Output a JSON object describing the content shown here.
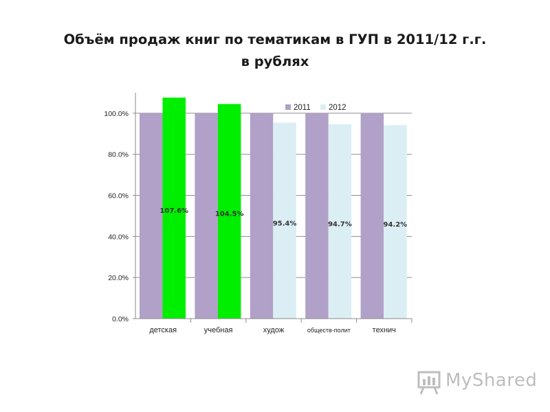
{
  "title": {
    "line1": "Объём продаж книг по тематикам в ГУП в 2011/12 г.г.",
    "line2": "в рублях"
  },
  "chart_data": {
    "type": "bar",
    "categories": [
      "детская",
      "учебная",
      "худож",
      "обществ-полит",
      "технич"
    ],
    "series": [
      {
        "name": "2011",
        "values": [
          100.0,
          100.0,
          100.0,
          100.0,
          100.0
        ],
        "color": "#b1a0c7"
      },
      {
        "name": "2012",
        "values": [
          107.6,
          104.5,
          95.4,
          94.7,
          94.2
        ],
        "color": "#dbeef4",
        "point_colors": [
          "#00ee00",
          "#00ee00",
          "#dbeef4",
          "#dbeef4",
          "#dbeef4"
        ],
        "data_labels": [
          "107.6%",
          "104.5%",
          "95.4%",
          "94.7%",
          "94.2%"
        ]
      }
    ],
    "ylim": [
      0,
      110
    ],
    "yticks": [
      0,
      20,
      40,
      60,
      80,
      100
    ],
    "ytick_labels": [
      "0.0%",
      "20.0%",
      "40.0%",
      "60.0%",
      "80.0%",
      "100.0%"
    ],
    "grid": true,
    "legend_position": "top-right"
  },
  "watermark": {
    "text": "MyShared",
    "icon": "presentation-board-icon"
  }
}
